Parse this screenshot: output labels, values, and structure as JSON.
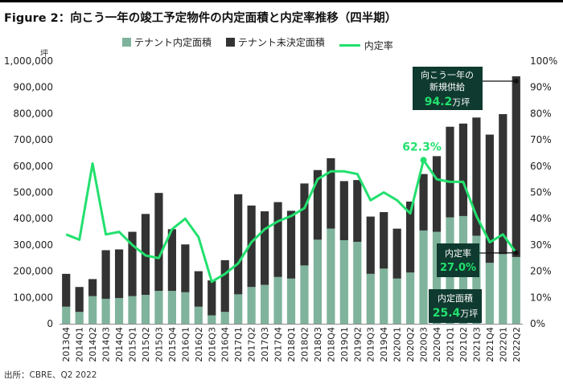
{
  "title": "Figure 2：向こう一年の竣工予定物件の内定面積と内定率推移（四半期）",
  "source": "出所：CBRE、Q2 2022",
  "legend": {
    "leased": "テナント内定面積",
    "unleased": "テナント未決定面積",
    "rate": "内定率"
  },
  "colors": {
    "leased": "#7fb39c",
    "unleased": "#333333",
    "rate": "#22e06e",
    "callout_bg": "#0f3a2f",
    "callout_value": "#22e06e"
  },
  "chart_data": {
    "type": "bar+line",
    "y_unit": "坪",
    "ylim": [
      0,
      1000000
    ],
    "y2lim": [
      0,
      100
    ],
    "y_ticks": [
      "0",
      "100,000",
      "200,000",
      "300,000",
      "400,000",
      "500,000",
      "600,000",
      "700,000",
      "800,000",
      "900,000",
      "1,000,000"
    ],
    "y2_ticks": [
      "0%",
      "10%",
      "20%",
      "30%",
      "40%",
      "50%",
      "60%",
      "70%",
      "80%",
      "90%",
      "100%"
    ],
    "categories": [
      "2013Q4",
      "2014Q1",
      "2014Q2",
      "2014Q3",
      "2014Q4",
      "2015Q1",
      "2015Q2",
      "2015Q3",
      "2015Q4",
      "2016Q1",
      "2016Q2",
      "2016Q3",
      "2016Q4",
      "2017Q1",
      "2017Q2",
      "2017Q3",
      "2017Q4",
      "2018Q1",
      "2018Q2",
      "2018Q3",
      "2018Q4",
      "2019Q1",
      "2019Q2",
      "2019Q3",
      "2019Q4",
      "2020Q1",
      "2020Q2",
      "2020Q3",
      "2020Q4",
      "2021Q1",
      "2021Q2",
      "2021Q3",
      "2021Q4",
      "2022Q1",
      "2022Q2"
    ],
    "series": [
      {
        "name": "テナント内定面積",
        "kind": "bar",
        "values": [
          65000,
          45000,
          105000,
          95000,
          98000,
          105000,
          110000,
          125000,
          125000,
          120000,
          65000,
          32000,
          45000,
          112000,
          140000,
          148000,
          178000,
          172000,
          222000,
          320000,
          362000,
          318000,
          312000,
          190000,
          210000,
          172000,
          195000,
          355000,
          350000,
          405000,
          410000,
          335000,
          232000,
          265000,
          254000
        ]
      },
      {
        "name": "テナント未決定面積",
        "kind": "bar",
        "values": [
          125000,
          95000,
          65000,
          185000,
          185000,
          245000,
          308000,
          373000,
          235000,
          182000,
          135000,
          133000,
          197000,
          381000,
          310000,
          280000,
          285000,
          258000,
          312000,
          265000,
          268000,
          225000,
          235000,
          218000,
          215000,
          190000,
          270000,
          215000,
          288000,
          345000,
          352000,
          450000,
          488000,
          533000,
          688000
        ]
      },
      {
        "name": "内定率",
        "kind": "line",
        "axis": "right",
        "values": [
          34,
          32,
          61,
          34,
          35,
          30,
          26,
          25,
          36,
          40,
          33,
          16,
          19,
          23,
          31,
          36,
          39,
          41,
          44,
          55,
          58,
          58,
          57,
          47,
          50,
          47,
          42,
          62.3,
          55,
          54,
          54,
          41,
          31,
          34,
          27
        ]
      }
    ],
    "annotations": {
      "peak_rate_label": "62.3%",
      "supply_callout": {
        "line1": "向こう一年の",
        "line2": "新規供給",
        "value": "94.2",
        "unit": "万坪"
      },
      "rate_callout": {
        "label": "内定率",
        "value": "27.0%"
      },
      "area_callout": {
        "label": "内定面積",
        "value": "25.4",
        "unit": "万坪"
      }
    }
  }
}
